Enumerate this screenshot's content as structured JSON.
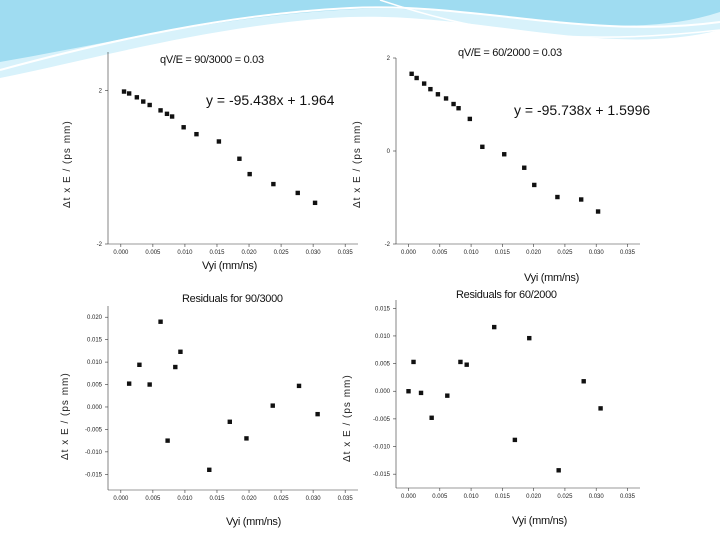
{
  "colors": {
    "banner_light": "#cfeef9",
    "banner_mid": "#8fd6ef",
    "marker": "#111111"
  },
  "chart_data": [
    {
      "type": "scatter",
      "id": "fit-90-3000",
      "title": "qV/E = 90/3000 = 0.03",
      "annotation": "y = -95.438x + 1.964",
      "xlabel": "Vyi (mm/ns)",
      "ylabel": "Δt x E / (ps mm)",
      "xlim": [
        -0.002,
        0.037
      ],
      "ylim": [
        -2,
        3
      ],
      "xticks": [
        "0.000",
        "0.005",
        "0.010",
        "0.015",
        "0.020",
        "0.025",
        "0.030",
        "0.035"
      ],
      "xtick_values": [
        0,
        0.005,
        0.01,
        0.015,
        0.02,
        0.025,
        0.03,
        0.035
      ],
      "yticks": [
        "-2",
        "2"
      ],
      "ytick_values": [
        -2,
        2
      ],
      "x": [
        0.0005,
        0.0013,
        0.0025,
        0.0035,
        0.0045,
        0.0062,
        0.0072,
        0.008,
        0.0098,
        0.0118,
        0.0153,
        0.0185,
        0.0201,
        0.0238,
        0.0276,
        0.0303
      ],
      "y": [
        1.97,
        1.92,
        1.82,
        1.71,
        1.62,
        1.48,
        1.39,
        1.32,
        1.04,
        0.86,
        0.67,
        0.22,
        -0.18,
        -0.44,
        null,
        null
      ]
    },
    {
      "type": "scatter",
      "id": "fit-60-2000",
      "title": "qV/E = 60/2000 = 0.03",
      "annotation": "y = -95.738x + 1.5996",
      "xlabel": "Vyi (mm/ns)",
      "ylabel": "Δt x E / (ps mm)",
      "xlim": [
        -0.002,
        0.037
      ],
      "ylim": [
        -2,
        2
      ],
      "xticks": [
        "0.000",
        "0.005",
        "0.010",
        "0.015",
        "0.020",
        "0.025",
        "0.030",
        "0.035"
      ],
      "xtick_values": [
        0,
        0.005,
        0.01,
        0.015,
        0.02,
        0.025,
        0.03,
        0.035
      ],
      "yticks": [
        "2",
        "0",
        "-2"
      ],
      "ytick_values": [
        2,
        0,
        -2
      ],
      "x": [
        0.0005,
        0.0013,
        0.0025,
        0.0035,
        0.0047,
        0.006,
        0.0072,
        0.008,
        0.0098,
        0.0118,
        0.0153,
        0.0185,
        0.0201,
        0.0238,
        0.0276,
        0.0303
      ],
      "y": [
        1.66,
        1.57,
        1.45,
        1.33,
        1.22,
        1.13,
        1.01,
        0.92,
        0.69,
        0.09,
        -0.07,
        -0.36,
        -0.73,
        -0.99,
        null,
        null
      ]
    },
    {
      "type": "scatter",
      "id": "residuals-90-3000",
      "title": "Residuals for 90/3000",
      "xlabel": "Vyi (mm/ns)",
      "ylabel": "Δt x E / (ps mm)",
      "xlim": [
        -0.002,
        0.037
      ],
      "ylim": [
        -0.0185,
        0.0225
      ],
      "xticks": [
        "0.000",
        "0.005",
        "0.010",
        "0.015",
        "0.020",
        "0.025",
        "0.030",
        "0.035"
      ],
      "xtick_values": [
        0,
        0.005,
        0.01,
        0.015,
        0.02,
        0.025,
        0.03,
        0.035
      ],
      "yticks": [
        "0.020",
        "0.015",
        "0.010",
        "0.005",
        "0.000",
        "-0.005",
        "-0.010",
        "-0.015"
      ],
      "ytick_values": [
        0.02,
        0.015,
        0.01,
        0.005,
        0,
        -0.005,
        -0.01,
        -0.015
      ],
      "x": [
        0.0013,
        0.0029,
        0.0045,
        0.0062,
        0.0073,
        0.0085,
        0.0093,
        0.0138,
        0.017,
        0.0196,
        0.0237,
        0.0278,
        0.0307
      ],
      "y": [
        0.0052,
        0.0094,
        0.005,
        0.019,
        -0.0075,
        0.0089,
        0.0123,
        -0.014,
        -0.0033,
        -0.007,
        0.0003,
        0.0047,
        -0.0016
      ]
    },
    {
      "type": "scatter",
      "id": "residuals-60-2000",
      "title": "Residuals for 60/2000",
      "xlabel": "Vyi (mm/ns)",
      "ylabel": "Δt x E / (ps mm)",
      "xlim": [
        -0.002,
        0.037
      ],
      "ylim": [
        -0.0175,
        0.0165
      ],
      "xticks": [
        "0.000",
        "0.005",
        "0.010",
        "0.015",
        "0.020",
        "0.025",
        "0.030",
        "0.035"
      ],
      "xtick_values": [
        0,
        0.005,
        0.01,
        0.015,
        0.02,
        0.025,
        0.03,
        0.035
      ],
      "yticks": [
        "0.015",
        "0.010",
        "0.005",
        "0.000",
        "-0.005",
        "-0.010",
        "-0.015"
      ],
      "ytick_values": [
        0.015,
        0.01,
        0.005,
        0,
        -0.005,
        -0.01,
        -0.015
      ],
      "x": [
        0.0,
        0.0008,
        0.002,
        0.0037,
        0.0062,
        0.0083,
        0.0093,
        0.0137,
        0.017,
        0.0193,
        0.024,
        0.028,
        0.0307
      ],
      "y": [
        0.0,
        0.0053,
        -0.0003,
        -0.0048,
        -0.0008,
        0.0053,
        0.0048,
        0.0116,
        -0.0088,
        0.0096,
        -0.0143,
        0.0018,
        -0.0031
      ]
    }
  ]
}
